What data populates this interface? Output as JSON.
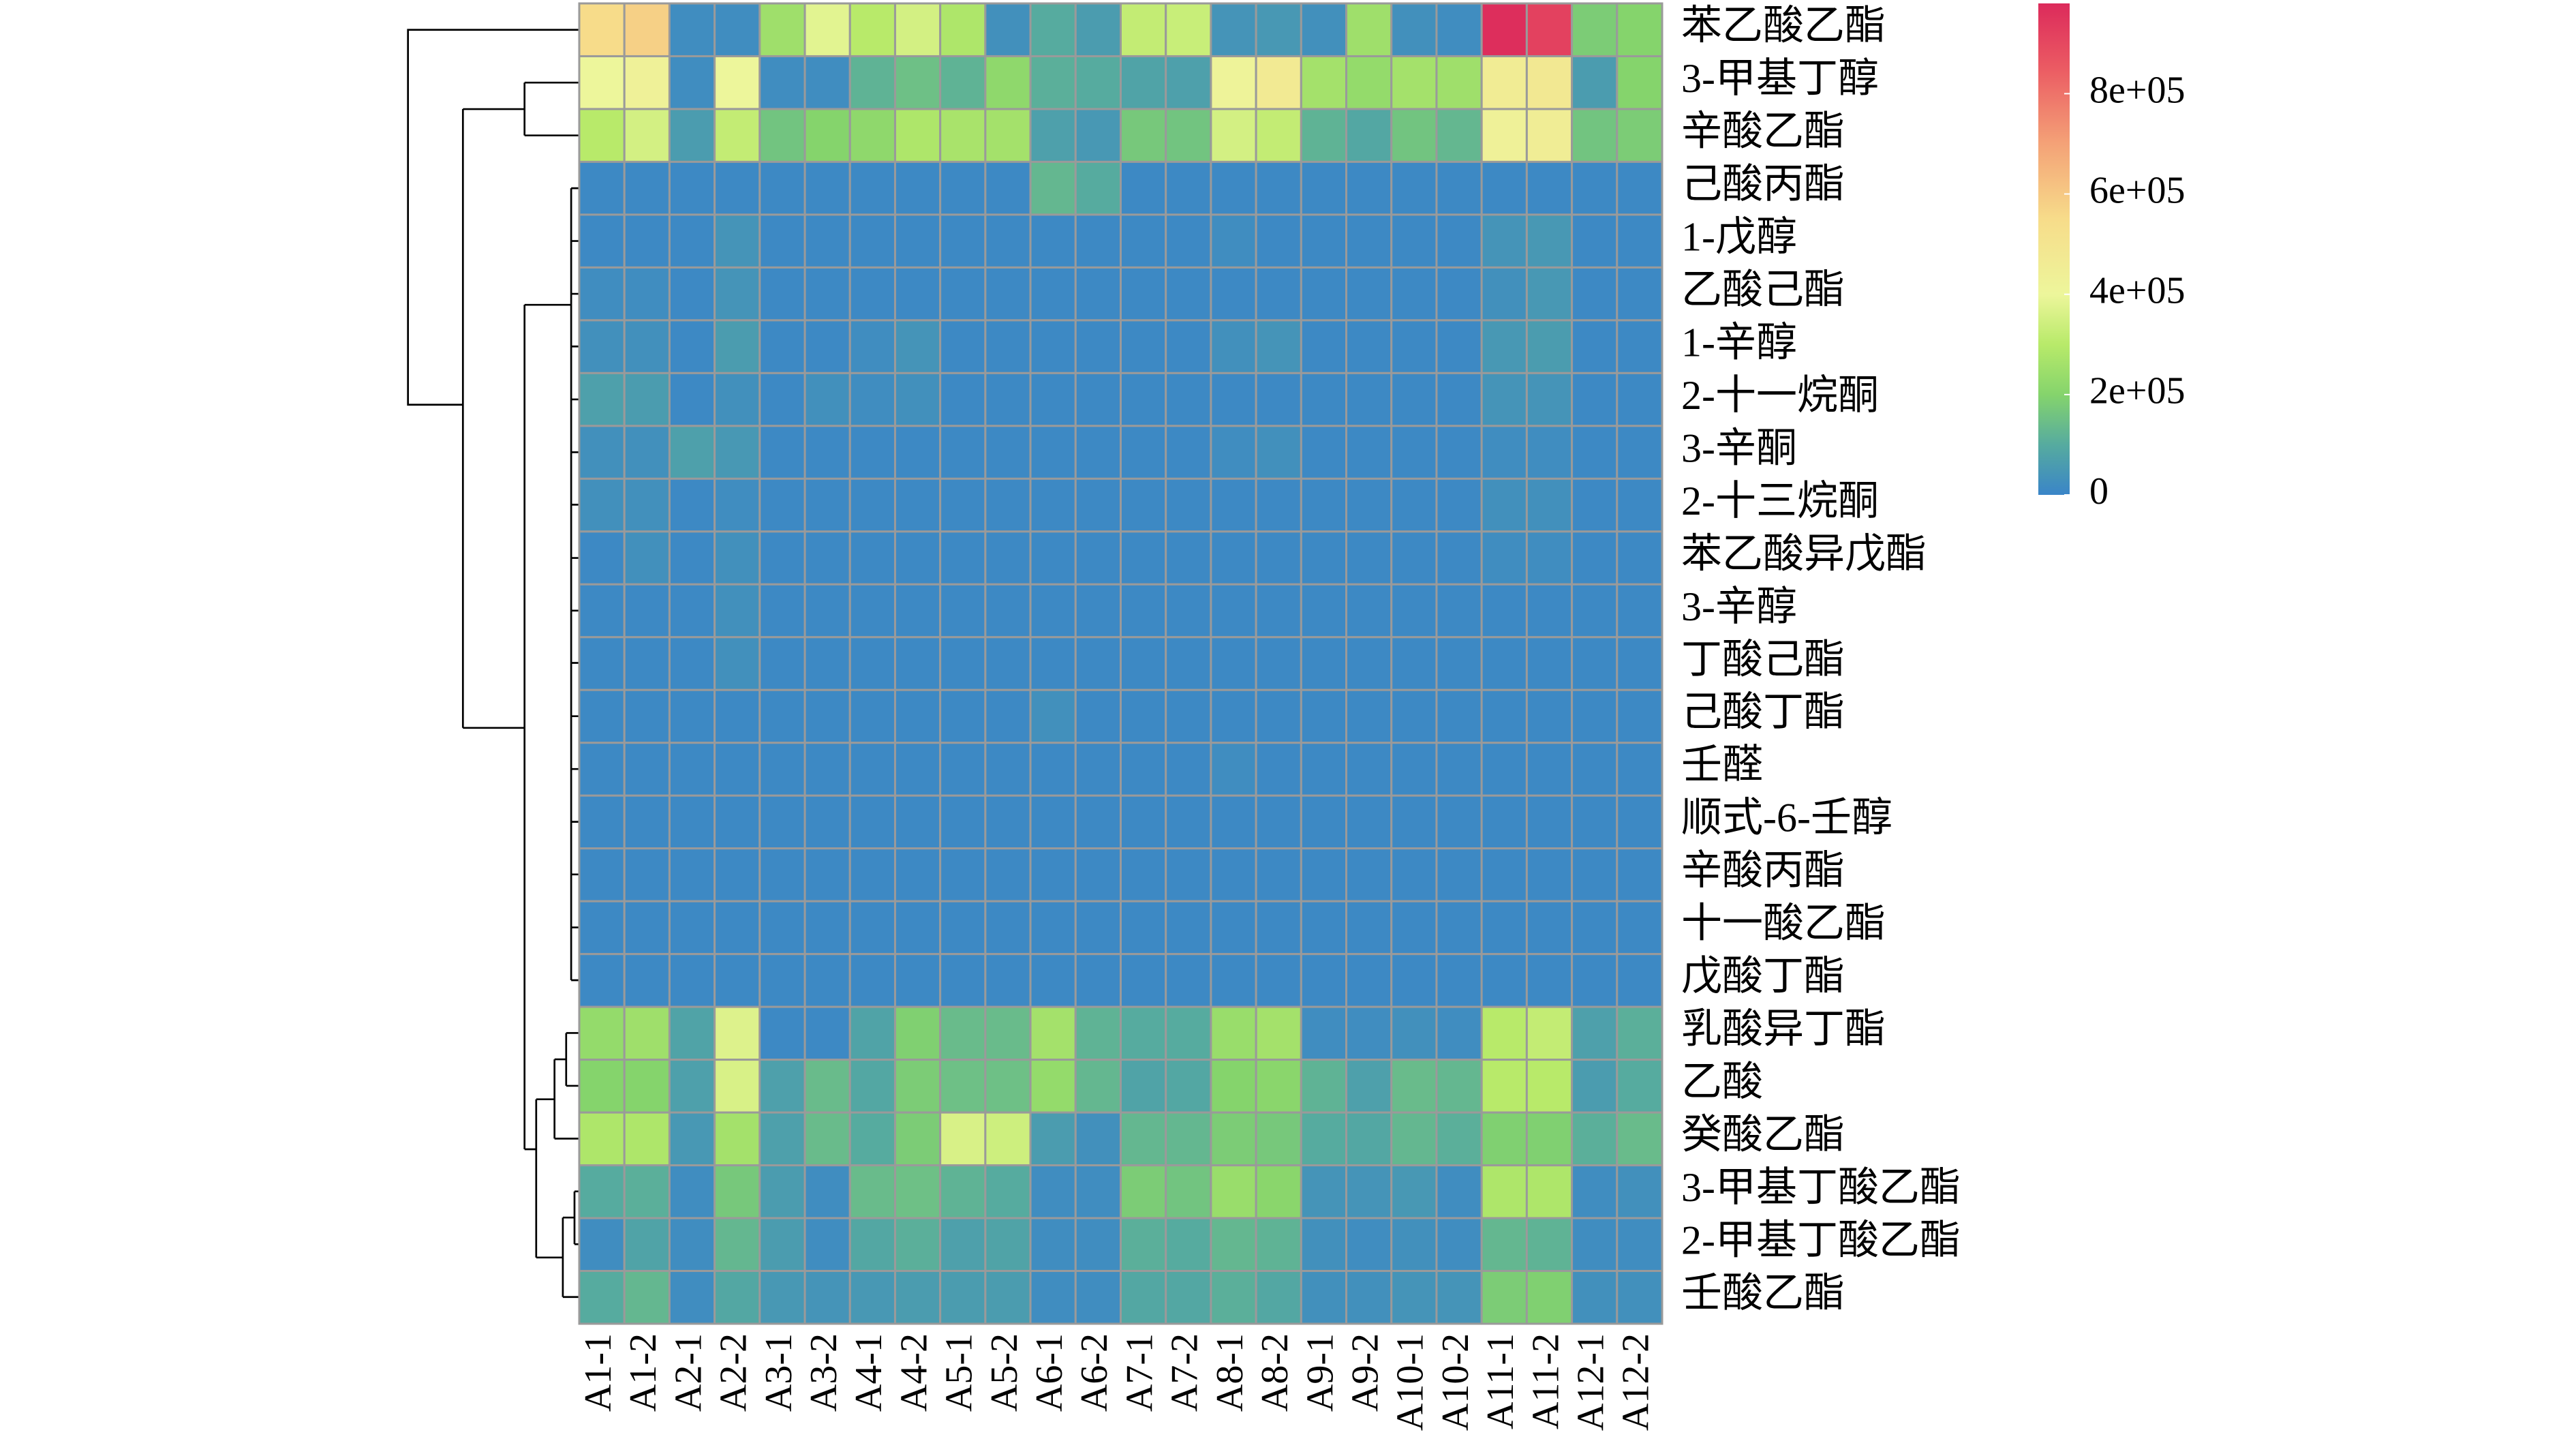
{
  "chart_data": {
    "type": "heatmap",
    "rows": [
      "苯乙酸乙酯",
      "3-甲基丁醇",
      "辛酸乙酯",
      "己酸丙酯",
      "1-戊醇",
      "乙酸己酯",
      "1-辛醇",
      "2-十一烷酮",
      "3-辛酮",
      "2-十三烷酮",
      "苯乙酸异戊酯",
      "3-辛醇",
      "丁酸己酯",
      "己酸丁酯",
      "壬醛",
      "顺式-6-壬醇",
      "辛酸丙酯",
      "十一酸乙酯",
      "戊酸丁酯",
      "乳酸异丁酯",
      "乙酸",
      "癸酸乙酯",
      "3-甲基丁酸乙酯",
      "2-甲基丁酸乙酯",
      "壬酸乙酯"
    ],
    "columns": [
      "A1-1",
      "A1-2",
      "A2-1",
      "A2-2",
      "A3-1",
      "A3-2",
      "A4-1",
      "A4-2",
      "A5-1",
      "A5-2",
      "A6-1",
      "A6-2",
      "A7-1",
      "A7-2",
      "A8-1",
      "A8-2",
      "A9-1",
      "A9-2",
      "A10-1",
      "A10-2",
      "A11-1",
      "A11-2",
      "A12-1",
      "A12-2"
    ],
    "values": [
      [
        550000,
        580000,
        20000,
        20000,
        250000,
        380000,
        300000,
        350000,
        280000,
        30000,
        100000,
        60000,
        320000,
        330000,
        40000,
        50000,
        30000,
        250000,
        30000,
        20000,
        970000,
        920000,
        180000,
        200000
      ],
      [
        400000,
        430000,
        20000,
        400000,
        20000,
        20000,
        120000,
        150000,
        120000,
        220000,
        110000,
        100000,
        80000,
        70000,
        420000,
        470000,
        260000,
        230000,
        260000,
        250000,
        460000,
        480000,
        60000,
        200000
      ],
      [
        300000,
        350000,
        60000,
        320000,
        160000,
        200000,
        220000,
        280000,
        270000,
        260000,
        70000,
        50000,
        170000,
        160000,
        350000,
        320000,
        120000,
        90000,
        160000,
        130000,
        430000,
        450000,
        160000,
        180000
      ],
      [
        10000,
        10000,
        10000,
        10000,
        10000,
        10000,
        10000,
        10000,
        10000,
        10000,
        130000,
        100000,
        10000,
        10000,
        10000,
        10000,
        10000,
        10000,
        10000,
        10000,
        10000,
        10000,
        10000,
        10000
      ],
      [
        10000,
        10000,
        10000,
        40000,
        10000,
        10000,
        10000,
        10000,
        10000,
        10000,
        10000,
        10000,
        10000,
        10000,
        20000,
        10000,
        10000,
        10000,
        10000,
        10000,
        40000,
        50000,
        10000,
        10000
      ],
      [
        20000,
        20000,
        10000,
        40000,
        10000,
        10000,
        10000,
        10000,
        10000,
        10000,
        10000,
        10000,
        10000,
        10000,
        10000,
        10000,
        10000,
        10000,
        10000,
        10000,
        30000,
        50000,
        10000,
        10000
      ],
      [
        30000,
        30000,
        10000,
        60000,
        10000,
        10000,
        20000,
        40000,
        10000,
        10000,
        10000,
        10000,
        10000,
        10000,
        30000,
        40000,
        10000,
        10000,
        10000,
        10000,
        50000,
        60000,
        10000,
        10000
      ],
      [
        70000,
        60000,
        10000,
        30000,
        10000,
        30000,
        20000,
        30000,
        10000,
        10000,
        10000,
        10000,
        10000,
        10000,
        10000,
        10000,
        10000,
        10000,
        10000,
        10000,
        40000,
        40000,
        10000,
        10000
      ],
      [
        30000,
        30000,
        70000,
        50000,
        10000,
        10000,
        10000,
        10000,
        10000,
        10000,
        10000,
        10000,
        10000,
        10000,
        20000,
        30000,
        10000,
        10000,
        10000,
        10000,
        20000,
        20000,
        10000,
        10000
      ],
      [
        30000,
        30000,
        10000,
        20000,
        10000,
        10000,
        10000,
        10000,
        10000,
        10000,
        10000,
        10000,
        10000,
        10000,
        10000,
        10000,
        10000,
        10000,
        10000,
        10000,
        30000,
        30000,
        10000,
        10000
      ],
      [
        10000,
        30000,
        10000,
        30000,
        10000,
        10000,
        10000,
        10000,
        10000,
        10000,
        10000,
        10000,
        10000,
        10000,
        10000,
        10000,
        10000,
        10000,
        10000,
        10000,
        20000,
        20000,
        10000,
        10000
      ],
      [
        10000,
        10000,
        10000,
        30000,
        10000,
        10000,
        10000,
        10000,
        10000,
        10000,
        10000,
        10000,
        10000,
        10000,
        10000,
        10000,
        10000,
        10000,
        10000,
        10000,
        10000,
        10000,
        10000,
        10000
      ],
      [
        10000,
        10000,
        10000,
        30000,
        10000,
        10000,
        10000,
        10000,
        10000,
        10000,
        10000,
        10000,
        10000,
        10000,
        10000,
        10000,
        10000,
        10000,
        10000,
        10000,
        10000,
        10000,
        10000,
        10000
      ],
      [
        10000,
        10000,
        10000,
        10000,
        10000,
        10000,
        10000,
        10000,
        10000,
        10000,
        30000,
        10000,
        10000,
        10000,
        10000,
        10000,
        10000,
        10000,
        10000,
        10000,
        10000,
        10000,
        10000,
        10000
      ],
      [
        10000,
        10000,
        10000,
        10000,
        10000,
        10000,
        10000,
        10000,
        10000,
        10000,
        10000,
        10000,
        10000,
        10000,
        20000,
        10000,
        10000,
        10000,
        10000,
        10000,
        10000,
        10000,
        10000,
        10000
      ],
      [
        10000,
        10000,
        10000,
        10000,
        10000,
        10000,
        10000,
        10000,
        10000,
        10000,
        10000,
        10000,
        10000,
        10000,
        10000,
        10000,
        10000,
        10000,
        10000,
        10000,
        10000,
        10000,
        10000,
        10000
      ],
      [
        10000,
        10000,
        10000,
        10000,
        10000,
        10000,
        10000,
        10000,
        10000,
        10000,
        10000,
        10000,
        10000,
        10000,
        10000,
        10000,
        10000,
        10000,
        10000,
        10000,
        10000,
        10000,
        10000,
        10000
      ],
      [
        10000,
        10000,
        10000,
        10000,
        10000,
        10000,
        10000,
        10000,
        10000,
        10000,
        10000,
        10000,
        10000,
        10000,
        10000,
        10000,
        10000,
        10000,
        10000,
        10000,
        10000,
        10000,
        10000,
        10000
      ],
      [
        10000,
        10000,
        10000,
        10000,
        10000,
        10000,
        10000,
        10000,
        10000,
        10000,
        10000,
        10000,
        10000,
        10000,
        10000,
        10000,
        10000,
        10000,
        10000,
        10000,
        10000,
        10000,
        10000,
        10000
      ],
      [
        230000,
        250000,
        80000,
        370000,
        10000,
        10000,
        80000,
        190000,
        140000,
        140000,
        260000,
        120000,
        100000,
        100000,
        240000,
        260000,
        20000,
        20000,
        30000,
        20000,
        300000,
        320000,
        70000,
        110000
      ],
      [
        200000,
        200000,
        70000,
        360000,
        70000,
        140000,
        90000,
        180000,
        150000,
        150000,
        230000,
        130000,
        80000,
        90000,
        200000,
        210000,
        120000,
        70000,
        140000,
        130000,
        300000,
        300000,
        60000,
        100000
      ],
      [
        280000,
        280000,
        50000,
        260000,
        70000,
        140000,
        100000,
        180000,
        360000,
        340000,
        60000,
        30000,
        130000,
        130000,
        180000,
        170000,
        100000,
        90000,
        130000,
        110000,
        190000,
        190000,
        110000,
        140000
      ],
      [
        100000,
        110000,
        20000,
        170000,
        60000,
        20000,
        140000,
        150000,
        120000,
        100000,
        20000,
        20000,
        180000,
        160000,
        240000,
        210000,
        40000,
        40000,
        50000,
        20000,
        280000,
        280000,
        20000,
        30000
      ],
      [
        20000,
        80000,
        20000,
        130000,
        60000,
        20000,
        90000,
        110000,
        70000,
        80000,
        20000,
        20000,
        110000,
        100000,
        130000,
        120000,
        30000,
        20000,
        30000,
        20000,
        130000,
        120000,
        20000,
        20000
      ],
      [
        100000,
        130000,
        20000,
        90000,
        50000,
        40000,
        50000,
        60000,
        60000,
        60000,
        20000,
        20000,
        90000,
        90000,
        110000,
        90000,
        30000,
        30000,
        40000,
        40000,
        180000,
        190000,
        30000,
        30000
      ]
    ],
    "colorscale": [
      [
        0,
        "#3a85c8"
      ],
      [
        100000,
        "#56ab9f"
      ],
      [
        200000,
        "#85d46c"
      ],
      [
        300000,
        "#b8ea6a"
      ],
      [
        400000,
        "#edf69b"
      ],
      [
        550000,
        "#f7dc8a"
      ],
      [
        700000,
        "#f4a277"
      ],
      [
        850000,
        "#eb5b63"
      ],
      [
        980000,
        "#dc2a5b"
      ]
    ],
    "colorbar_lim": [
      0,
      980000
    ],
    "colorbar_ticks": [
      0,
      {
        "value": 200000,
        "label": "2e+05"
      },
      {
        "value": 400000,
        "label": "4e+05"
      },
      {
        "value": 600000,
        "label": "6e+05"
      },
      {
        "value": 800000,
        "label": "8e+05"
      }
    ]
  }
}
